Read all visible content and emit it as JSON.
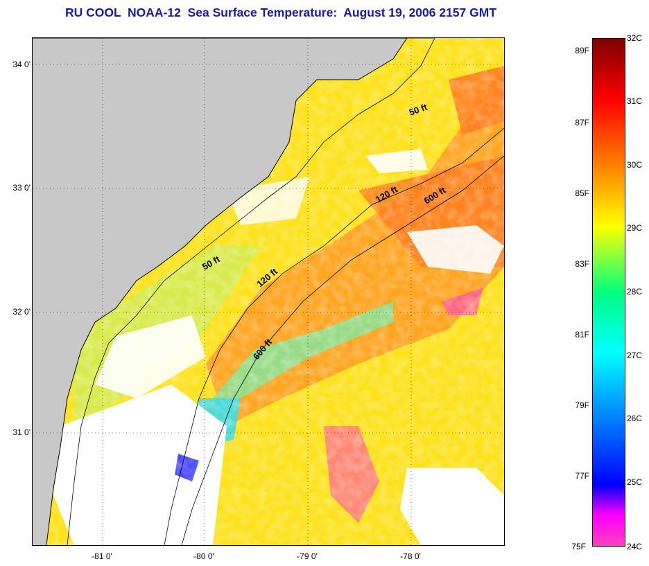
{
  "title": "RU COOL  NOAA-12  Sea Surface Temperature:  August 19, 2006 2157 GMT",
  "axes": {
    "lat_ticks": [
      "34 0'",
      "33 0'",
      "32 0'",
      "31 0'"
    ],
    "lon_ticks": [
      "-81 0'",
      "-80 0'",
      "-79 0'",
      "-78 0'"
    ]
  },
  "isobaths": [
    {
      "label": "50 ft",
      "depth_ft": 50
    },
    {
      "label": "120 ft",
      "depth_ft": 120
    },
    {
      "label": "600 ft",
      "depth_ft": 600
    },
    {
      "label": "50 ft",
      "depth_ft": 50
    },
    {
      "label": "120 ft",
      "depth_ft": 120
    },
    {
      "label": "600 ft",
      "depth_ft": 600
    }
  ],
  "colorbar": {
    "fahrenheit": [
      "89F",
      "87F",
      "85F",
      "83F",
      "81F",
      "79F",
      "77F",
      "75F"
    ],
    "celsius": [
      "32C",
      "31C",
      "30C",
      "29C",
      "28C",
      "27C",
      "26C",
      "25C",
      "24C"
    ],
    "stops": [
      "#800000",
      "#ff0000",
      "#ff8000",
      "#ffff00",
      "#00ff80",
      "#00ffff",
      "#0080ff",
      "#0000ff",
      "#ff00ff",
      "#ff40c0"
    ]
  },
  "colors": {
    "land": "#c8c8c8",
    "cloud": "#ffffff",
    "warm_shelf": "#ffd21e",
    "gulf_stream": "#ff8c1e",
    "cool_water": "#50e6c8",
    "label_color": "#1a1aa8"
  }
}
